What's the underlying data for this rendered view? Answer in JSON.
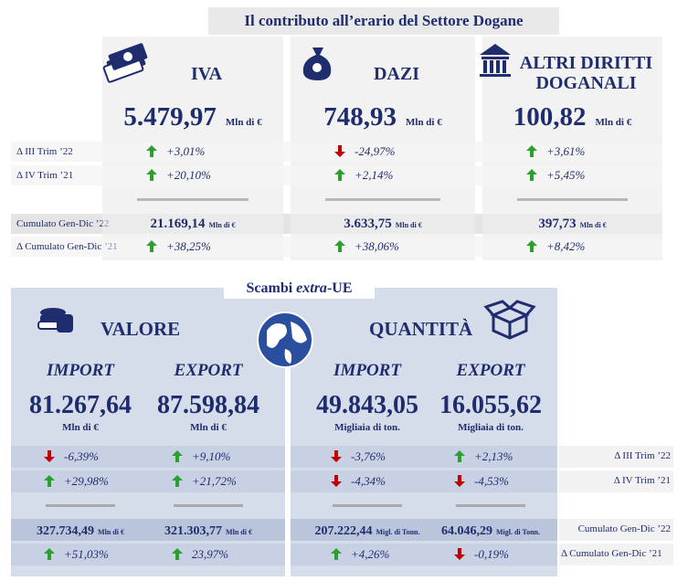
{
  "top": {
    "title": "Il contributo all’erario del Settore Dogane",
    "row_labels": [
      "Δ III Trim ’22",
      "Δ IV Trim ’21",
      "Cumulato Gen-Dic ’22",
      "Δ Cumulato Gen-Dic ’21"
    ],
    "columns": [
      {
        "name": "IVA",
        "value": "5.479,97",
        "unit": "Mln di €",
        "delta_q": {
          "text": "+3,01%",
          "trend": "up"
        },
        "delta_y": {
          "text": "+20,10%",
          "trend": "up"
        },
        "cumulative": "21.169,14",
        "cumulative_unit": "Mln di €",
        "delta_cum": {
          "text": "+38,25%",
          "trend": "up"
        }
      },
      {
        "name": "DAZI",
        "value": "748,93",
        "unit": "Mln di €",
        "delta_q": {
          "text": "-24,97%",
          "trend": "down"
        },
        "delta_y": {
          "text": "+2,14%",
          "trend": "up"
        },
        "cumulative": "3.633,75",
        "cumulative_unit": "Mln di €",
        "delta_cum": {
          "text": "+38,06%",
          "trend": "up"
        }
      },
      {
        "name": "ALTRI DIRITTI DOGANALI",
        "value": "100,82",
        "unit": "Mln di €",
        "delta_q": {
          "text": "+3,61%",
          "trend": "up"
        },
        "delta_y": {
          "text": "+5,45%",
          "trend": "up"
        },
        "cumulative": "397,73",
        "cumulative_unit": "Mln di €",
        "delta_cum": {
          "text": "+8,42%",
          "trend": "up"
        }
      }
    ]
  },
  "bottom": {
    "title_prefix": "Scambi ",
    "title_em": "extra",
    "title_suffix": "-UE",
    "groups": [
      "VALORE",
      "QUANTITÀ"
    ],
    "row_labels": [
      "Δ III Trim ’22",
      "Δ IV Trim ’21",
      "Cumulato Gen-Dic ’22",
      "Δ Cumulato Gen-Dic ’21"
    ],
    "columns": [
      {
        "flow": "IMPORT",
        "value": "81.267,64",
        "unit": "Mln di €",
        "delta_q": {
          "text": "-6,39%",
          "trend": "down"
        },
        "delta_y": {
          "text": "+29,98%",
          "trend": "up"
        },
        "cumulative": "327.734,49",
        "cumulative_unit": "Mln di €",
        "delta_cum": {
          "text": "+51,03%",
          "trend": "up"
        }
      },
      {
        "flow": "EXPORT",
        "value": "87.598,84",
        "unit": "Mln di €",
        "delta_q": {
          "text": "+9,10%",
          "trend": "up"
        },
        "delta_y": {
          "text": "+21,72%",
          "trend": "up"
        },
        "cumulative": "321.303,77",
        "cumulative_unit": "Mln di €",
        "delta_cum": {
          "text": "23,97%",
          "trend": "up"
        }
      },
      {
        "flow": "IMPORT",
        "value": "49.843,05",
        "unit": "Migliaia di ton.",
        "delta_q": {
          "text": "-3,76%",
          "trend": "down"
        },
        "delta_y": {
          "text": "-4,34%",
          "trend": "down"
        },
        "cumulative": "207.222,44",
        "cumulative_unit": "Migl. di Tonn.",
        "delta_cum": {
          "text": "+4,26%",
          "trend": "up"
        }
      },
      {
        "flow": "EXPORT",
        "value": "16.055,62",
        "unit": "Migliaia di ton.",
        "delta_q": {
          "text": "+2,13%",
          "trend": "up"
        },
        "delta_y": {
          "text": "-4,53%",
          "trend": "down"
        },
        "cumulative": "64.046,29",
        "cumulative_unit": "Migl. di Tonn.",
        "delta_cum": {
          "text": "-0,19%",
          "trend": "down"
        }
      }
    ]
  }
}
